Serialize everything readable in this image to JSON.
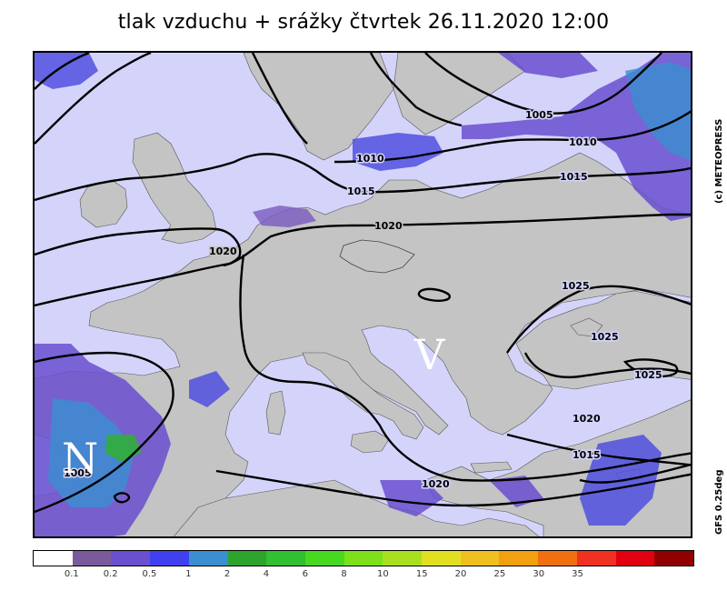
{
  "title": "tlak vzduchu + srážky čtvrtek 26.11.2020 12:00",
  "copyright": "(c) METEOPRESS",
  "model": "GFS 0.25deg",
  "colors": {
    "sea": "#d4d4fb",
    "land": "#c4c4c4",
    "precip_light": "#7a5bc0",
    "precip_mid": "#5050e0",
    "precip_heavy": "#3a8fd0",
    "precip_green": "#30b030"
  },
  "isobar_labels": [
    {
      "text": "1005",
      "where": "north-east"
    },
    {
      "text": "1010",
      "where": "north-east"
    },
    {
      "text": "1010",
      "where": "north"
    },
    {
      "text": "1015",
      "where": "north"
    },
    {
      "text": "1015",
      "where": "north-east"
    },
    {
      "text": "1020",
      "where": "north"
    },
    {
      "text": "1020",
      "where": "west"
    },
    {
      "text": "1025",
      "where": "east"
    },
    {
      "text": "1025",
      "where": "black-sea"
    },
    {
      "text": "1025",
      "where": "south-east"
    },
    {
      "text": "1020",
      "where": "south-east"
    },
    {
      "text": "1015",
      "where": "south-east"
    },
    {
      "text": "1020",
      "where": "south"
    },
    {
      "text": "1005",
      "where": "south-west"
    }
  ],
  "pressure_centers": [
    {
      "letter": "V",
      "meaning": "high"
    },
    {
      "letter": "N",
      "meaning": "low"
    }
  ],
  "legend": {
    "colors": [
      "#ffffff",
      "#7a5a9c",
      "#6a4fcf",
      "#4040f0",
      "#3a8fd0",
      "#2ea32e",
      "#30c030",
      "#48d820",
      "#7ee01a",
      "#a8e020",
      "#e0e020",
      "#f0c020",
      "#f0a010",
      "#f07010",
      "#f03020",
      "#e00010",
      "#900000"
    ],
    "ticks": [
      "0.1",
      "0.2",
      "0.5",
      "1",
      "2",
      "4",
      "6",
      "8",
      "10",
      "15",
      "20",
      "25",
      "30",
      "35"
    ]
  }
}
